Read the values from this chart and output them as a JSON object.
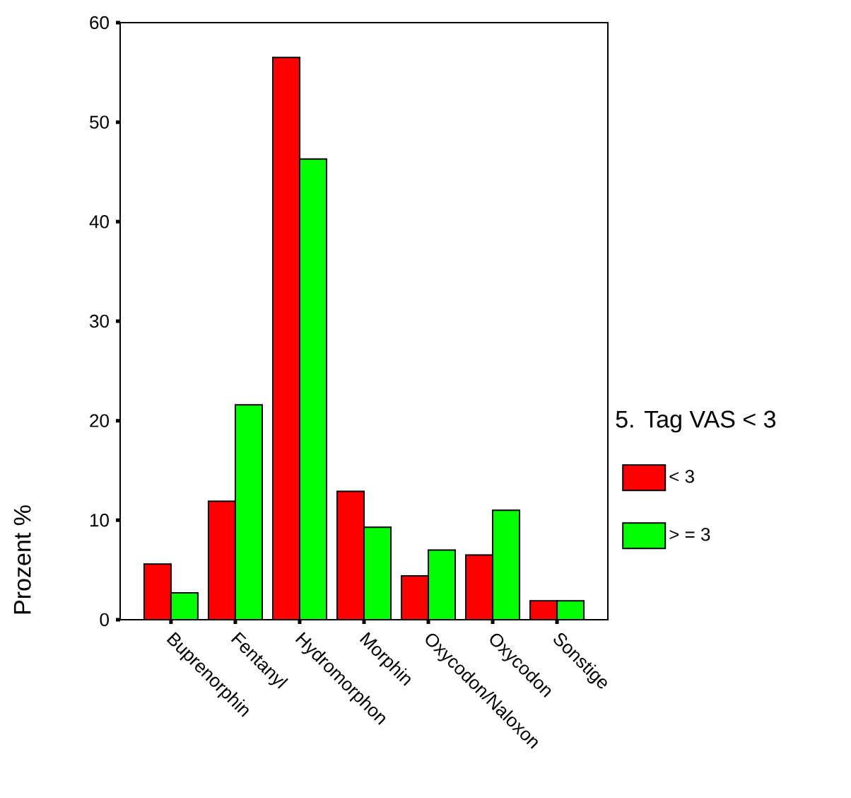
{
  "chart_data": {
    "type": "bar",
    "xlabel": null,
    "ylabel": "Prozent %",
    "legend_title": "5. Tag VAS < 3",
    "categories": [
      "Buprenorphin",
      "Fentanyl",
      "Hydromorphon",
      "Morphin",
      "Oxycodon/Naloxon",
      "Oxycodon",
      "Sonstige"
    ],
    "series": [
      {
        "name": "< 3",
        "color": "#ff0000",
        "values": [
          5.6,
          11.9,
          56.5,
          12.9,
          4.4,
          6.5,
          1.9
        ]
      },
      {
        "name": "> = 3",
        "color": "#00ff00",
        "values": [
          2.7,
          21.6,
          46.3,
          9.3,
          7.0,
          11.0,
          1.9
        ]
      }
    ],
    "ylim": [
      0,
      60
    ],
    "yticks": [
      0,
      10,
      20,
      30,
      40,
      50,
      60
    ],
    "grid": false,
    "legend": "right"
  }
}
